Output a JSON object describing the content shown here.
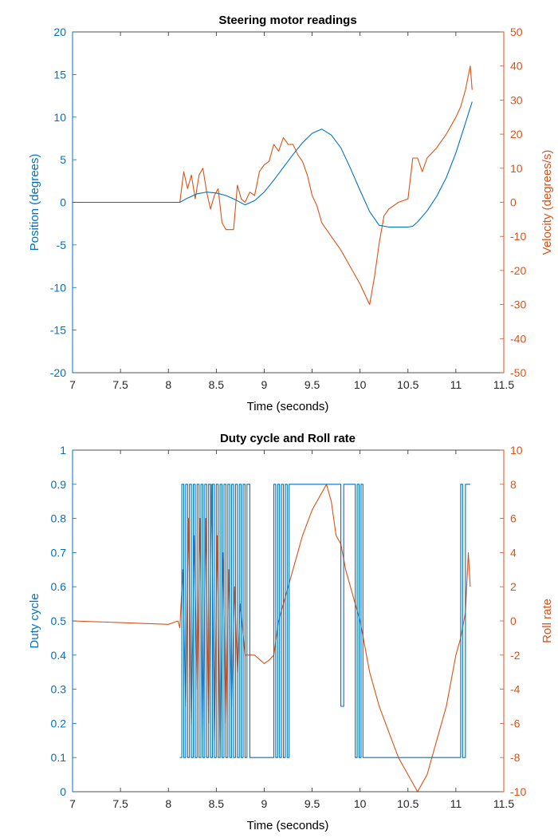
{
  "colors": {
    "left_series": "#0072BD",
    "right_series": "#D95319",
    "axis": "#262626"
  },
  "chart_data": [
    {
      "type": "line",
      "title": "Steering motor readings",
      "xlabel": "Time (seconds)",
      "ylabel_left": "Position (degrees)",
      "ylabel_right": "Velocity (degrees/s)",
      "xlim": [
        7,
        11.5
      ],
      "ylim_left": [
        -20,
        20
      ],
      "ylim_right": [
        -50,
        50
      ],
      "x_ticks": [
        "7",
        "7.5",
        "8",
        "8.5",
        "9",
        "9.5",
        "10",
        "10.5",
        "11",
        "11.5"
      ],
      "y_ticks_left": [
        "-20",
        "-15",
        "-10",
        "-5",
        "0",
        "5",
        "10",
        "15",
        "20"
      ],
      "y_ticks_right": [
        "-50",
        "-40",
        "-30",
        "-20",
        "-10",
        "0",
        "10",
        "20",
        "30",
        "40",
        "50"
      ],
      "grid": false,
      "series": [
        {
          "axis": "left",
          "x": [
            7.0,
            8.12,
            8.2,
            8.3,
            8.4,
            8.5,
            8.6,
            8.7,
            8.8,
            8.9,
            9.0,
            9.1,
            9.2,
            9.3,
            9.4,
            9.5,
            9.6,
            9.7,
            9.8,
            9.9,
            10.0,
            10.1,
            10.2,
            10.3,
            10.4,
            10.5,
            10.55,
            10.6,
            10.7,
            10.8,
            10.9,
            11.0,
            11.1,
            11.17
          ],
          "y": [
            0.0,
            0.0,
            0.5,
            1.0,
            1.2,
            1.1,
            0.8,
            0.3,
            -0.3,
            0.2,
            1.2,
            2.6,
            4.1,
            5.6,
            7.0,
            8.1,
            8.6,
            7.9,
            6.4,
            4.0,
            1.4,
            -1.1,
            -2.7,
            -2.9,
            -2.9,
            -2.9,
            -2.8,
            -2.3,
            -1.0,
            0.7,
            2.9,
            5.8,
            9.3,
            11.8
          ]
        },
        {
          "axis": "right",
          "x": [
            7.0,
            8.12,
            8.16,
            8.2,
            8.24,
            8.28,
            8.32,
            8.36,
            8.4,
            8.44,
            8.48,
            8.52,
            8.56,
            8.6,
            8.64,
            8.68,
            8.72,
            8.76,
            8.8,
            8.85,
            8.9,
            8.95,
            9.0,
            9.05,
            9.1,
            9.15,
            9.2,
            9.25,
            9.3,
            9.35,
            9.4,
            9.45,
            9.5,
            9.55,
            9.6,
            9.7,
            9.8,
            9.9,
            10.0,
            10.1,
            10.15,
            10.2,
            10.25,
            10.3,
            10.4,
            10.5,
            10.55,
            10.6,
            10.65,
            10.7,
            10.8,
            10.9,
            11.0,
            11.05,
            11.1,
            11.15,
            11.17
          ],
          "y": [
            0.0,
            0.0,
            9.0,
            4.0,
            8.0,
            1.0,
            8.0,
            10.0,
            3.0,
            -2.0,
            2.0,
            4.0,
            -6.0,
            -8.0,
            -8.0,
            -8.0,
            5.0,
            1.0,
            0.0,
            3.0,
            2.0,
            9.0,
            11.0,
            12.0,
            17.0,
            15.0,
            19.0,
            17.0,
            17.0,
            14.0,
            12.0,
            8.0,
            2.0,
            -1.0,
            -6.0,
            -10.0,
            -14.0,
            -19.0,
            -24.0,
            -30.0,
            -22.0,
            -12.0,
            -4.0,
            -2.0,
            0.0,
            1.0,
            13.0,
            13.0,
            9.0,
            13.0,
            16.0,
            20.0,
            25.0,
            28.0,
            33.0,
            40.0,
            33.0
          ]
        }
      ]
    },
    {
      "type": "line",
      "title": "Duty cycle and Roll rate",
      "xlabel": "Time (seconds)",
      "ylabel_left": "Duty cycle",
      "ylabel_right": "Roll rate",
      "xlim": [
        7,
        11.5
      ],
      "ylim_left": [
        0,
        1
      ],
      "ylim_right": [
        -10,
        10
      ],
      "x_ticks": [
        "7",
        "7.5",
        "8",
        "8.5",
        "9",
        "9.5",
        "10",
        "10.5",
        "11",
        "11.5"
      ],
      "y_ticks_left": [
        "0",
        "0.1",
        "0.2",
        "0.3",
        "0.4",
        "0.5",
        "0.6",
        "0.7",
        "0.8",
        "0.9",
        "1"
      ],
      "y_ticks_right": [
        "-10",
        "-8",
        "-6",
        "-4",
        "-2",
        "0",
        "2",
        "4",
        "6",
        "8",
        "10"
      ],
      "grid": false,
      "series": [
        {
          "axis": "left",
          "x": [
            8.12,
            8.14,
            8.14,
            8.16,
            8.16,
            8.18,
            8.18,
            8.2,
            8.2,
            8.22,
            8.22,
            8.24,
            8.24,
            8.26,
            8.26,
            8.28,
            8.28,
            8.3,
            8.3,
            8.32,
            8.32,
            8.34,
            8.34,
            8.36,
            8.36,
            8.38,
            8.38,
            8.4,
            8.4,
            8.42,
            8.42,
            8.44,
            8.44,
            8.46,
            8.46,
            8.48,
            8.48,
            8.5,
            8.5,
            8.52,
            8.52,
            8.54,
            8.54,
            8.56,
            8.56,
            8.58,
            8.58,
            8.6,
            8.6,
            8.62,
            8.62,
            8.64,
            8.64,
            8.66,
            8.66,
            8.68,
            8.68,
            8.7,
            8.7,
            8.72,
            8.72,
            8.74,
            8.74,
            8.76,
            8.76,
            8.78,
            8.78,
            8.8,
            8.8,
            8.82,
            8.82,
            8.85,
            8.85,
            9.1,
            9.1,
            9.12,
            9.12,
            9.14,
            9.14,
            9.16,
            9.16,
            9.18,
            9.18,
            9.2,
            9.2,
            9.22,
            9.22,
            9.24,
            9.24,
            9.26,
            9.26,
            9.28,
            9.28,
            9.8,
            9.8,
            9.83,
            9.83,
            9.95,
            9.95,
            9.97,
            9.97,
            9.99,
            9.99,
            10.01,
            10.01,
            10.03,
            10.03,
            10.06,
            10.06,
            11.05,
            11.05,
            11.07,
            11.07,
            11.1,
            11.1,
            11.15
          ],
          "y": [
            0.1,
            0.1,
            0.9,
            0.9,
            0.1,
            0.1,
            0.9,
            0.9,
            0.1,
            0.1,
            0.9,
            0.9,
            0.1,
            0.1,
            0.9,
            0.9,
            0.1,
            0.1,
            0.9,
            0.9,
            0.1,
            0.1,
            0.9,
            0.9,
            0.1,
            0.1,
            0.9,
            0.9,
            0.1,
            0.1,
            0.9,
            0.9,
            0.1,
            0.1,
            0.9,
            0.9,
            0.1,
            0.1,
            0.9,
            0.9,
            0.1,
            0.1,
            0.9,
            0.9,
            0.1,
            0.1,
            0.9,
            0.9,
            0.1,
            0.1,
            0.9,
            0.9,
            0.1,
            0.1,
            0.9,
            0.9,
            0.1,
            0.1,
            0.9,
            0.9,
            0.1,
            0.1,
            0.9,
            0.9,
            0.1,
            0.1,
            0.9,
            0.9,
            0.1,
            0.1,
            0.9,
            0.9,
            0.1,
            0.1,
            0.9,
            0.9,
            0.1,
            0.1,
            0.9,
            0.9,
            0.1,
            0.1,
            0.9,
            0.9,
            0.1,
            0.1,
            0.9,
            0.9,
            0.1,
            0.1,
            0.9,
            0.9,
            0.9,
            0.9,
            0.25,
            0.25,
            0.9,
            0.9,
            0.1,
            0.1,
            0.9,
            0.9,
            0.1,
            0.1,
            0.9,
            0.9,
            0.1,
            0.1,
            0.1,
            0.1,
            0.9,
            0.9,
            0.1,
            0.1,
            0.9,
            0.9
          ]
        },
        {
          "axis": "right",
          "x": [
            7.0,
            7.5,
            8.0,
            8.1,
            8.12,
            8.15,
            8.18,
            8.21,
            8.24,
            8.27,
            8.3,
            8.33,
            8.36,
            8.39,
            8.42,
            8.45,
            8.48,
            8.51,
            8.54,
            8.57,
            8.6,
            8.63,
            8.66,
            8.69,
            8.72,
            8.75,
            8.8,
            8.9,
            9.0,
            9.05,
            9.1,
            9.15,
            9.2,
            9.3,
            9.4,
            9.5,
            9.6,
            9.65,
            9.7,
            9.75,
            9.8,
            9.85,
            9.9,
            10.0,
            10.1,
            10.2,
            10.3,
            10.4,
            10.5,
            10.6,
            10.65,
            10.7,
            10.8,
            10.9,
            11.0,
            11.05,
            11.1,
            11.13,
            11.15
          ],
          "y": [
            0.0,
            -0.1,
            -0.2,
            0.0,
            -0.4,
            3.0,
            -5.0,
            6.0,
            -6.0,
            5.0,
            -4.0,
            6.0,
            -7.0,
            6.0,
            -6.0,
            8.0,
            -7.0,
            5.0,
            -8.0,
            4.0,
            -6.0,
            3.0,
            -5.0,
            2.0,
            -3.0,
            1.0,
            -2.0,
            -2.0,
            -2.5,
            -2.3,
            -2.0,
            0.0,
            1.0,
            3.0,
            5.0,
            6.5,
            7.5,
            8.0,
            7.0,
            5.0,
            4.5,
            3.0,
            2.0,
            0.0,
            -3.0,
            -5.0,
            -6.5,
            -8.0,
            -9.0,
            -10.0,
            -9.5,
            -9.0,
            -7.0,
            -5.0,
            -2.0,
            -1.0,
            0.5,
            4.0,
            2.0
          ]
        }
      ]
    }
  ]
}
